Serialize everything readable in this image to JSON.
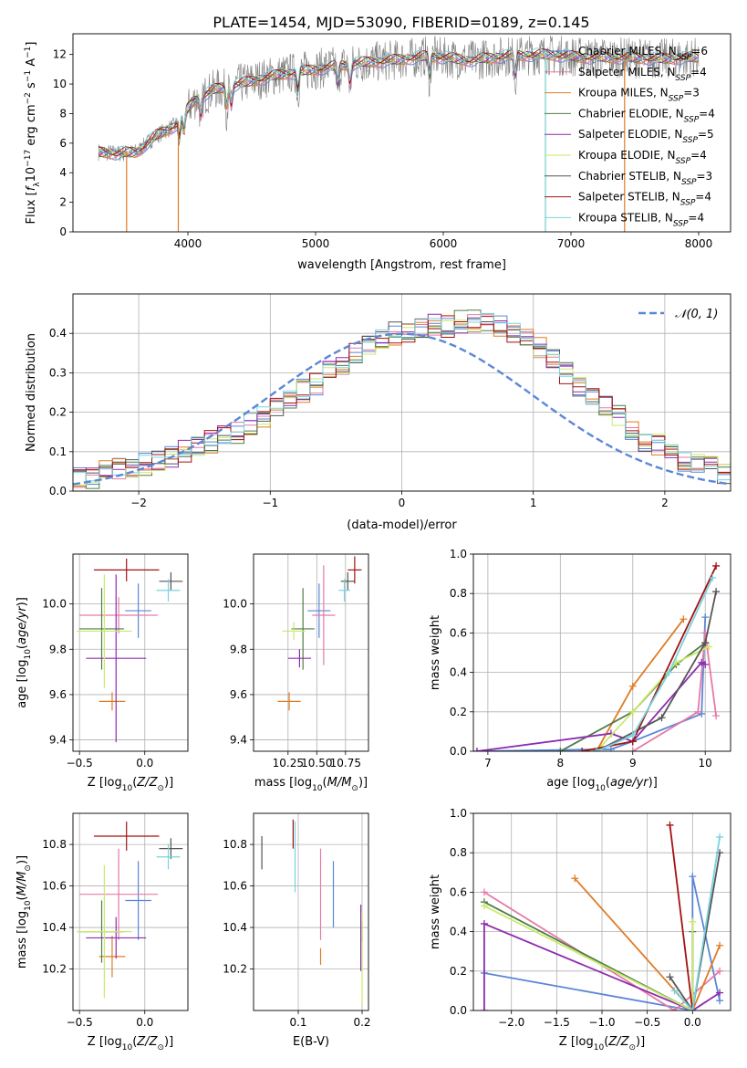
{
  "figure_title": "PLATE=1454, MJD=53090, FIBERID=0189, z=0.145",
  "colors": {
    "chabrier_miles": "#5a86d6",
    "salpeter_miles": "#e57aa8",
    "kroupa_miles": "#e07b24",
    "chabrier_elodie": "#4f7d46",
    "salpeter_elodie": "#8e2cb0",
    "kroupa_elodie": "#c9ea6a",
    "chabrier_stelib": "#555555",
    "salpeter_stelib": "#a31212",
    "kroupa_stelib": "#79d2df",
    "observed": "#7f7f7f",
    "gauss": "#5b87d8"
  },
  "models": [
    {
      "key": "chabrier_miles",
      "label": "Chabrier MILES, N",
      "sub": "SSP",
      "n": "=6"
    },
    {
      "key": "salpeter_miles",
      "label": "Salpeter MILES, N",
      "sub": "SSP",
      "n": "=4"
    },
    {
      "key": "kroupa_miles",
      "label": "Kroupa MILES, N",
      "sub": "SSP",
      "n": "=3"
    },
    {
      "key": "chabrier_elodie",
      "label": "Chabrier ELODIE, N",
      "sub": "SSP",
      "n": "=4"
    },
    {
      "key": "salpeter_elodie",
      "label": "Salpeter ELODIE, N",
      "sub": "SSP",
      "n": "=5"
    },
    {
      "key": "kroupa_elodie",
      "label": "Kroupa ELODIE, N",
      "sub": "SSP",
      "n": "=4"
    },
    {
      "key": "chabrier_stelib",
      "label": "Chabrier STELIB, N",
      "sub": "SSP",
      "n": "=3"
    },
    {
      "key": "salpeter_stelib",
      "label": "Salpeter STELIB, N",
      "sub": "SSP",
      "n": "=4"
    },
    {
      "key": "kroupa_stelib",
      "label": "Kroupa STELIB, N",
      "sub": "SSP",
      "n": "=4"
    }
  ],
  "chart_data": [
    {
      "id": "spectrum",
      "type": "line",
      "title": "PLATE=1454, MJD=53090, FIBERID=0189, z=0.145",
      "xlabel": "wavelength [Angstrom, rest frame]",
      "ylabel": "Flux [f_λ 10^-17 erg cm^-2 s^-1 A^-1]",
      "xlim": [
        3100,
        8250
      ],
      "ylim": [
        0,
        13.4
      ],
      "xticks": [
        4000,
        5000,
        6000,
        7000,
        8000
      ],
      "yticks": [
        0,
        2,
        4,
        6,
        8,
        10,
        12
      ],
      "continuum": {
        "x": [
          3300,
          3450,
          3600,
          3750,
          3900,
          3950,
          4050,
          4200,
          4400,
          4700,
          5000,
          5300,
          5600,
          5900,
          6200,
          6500,
          6800,
          7100,
          7400,
          7700,
          8000
        ],
        "y": [
          5.4,
          5.3,
          5.4,
          6.5,
          7.2,
          7.8,
          8.9,
          9.6,
          10.0,
          10.6,
          11.0,
          11.4,
          11.6,
          11.9,
          11.6,
          11.9,
          12.0,
          11.8,
          11.8,
          11.7,
          11.8
        ]
      },
      "absorption_lines": [
        3934,
        3969,
        4102,
        4304,
        4340,
        4861,
        5175,
        5270,
        5893,
        6563
      ],
      "model_dropouts": [
        {
          "series": "kroupa_miles",
          "x": 3520
        },
        {
          "series": "kroupa_miles",
          "x": 3925
        },
        {
          "series": "kroupa_elodie",
          "x": 6800
        },
        {
          "series": "kroupa_stelib",
          "x": 6800
        },
        {
          "series": "kroupa_miles",
          "x": 7420
        }
      ],
      "grid": false,
      "legend_position": "top-right"
    },
    {
      "id": "residuals",
      "type": "histogram",
      "xlabel": "(data-model)/error",
      "ylabel": "Normed distribution",
      "xlim": [
        -2.5,
        2.5
      ],
      "ylim": [
        0,
        0.5
      ],
      "xticks": [
        -2,
        -1,
        0,
        1,
        2
      ],
      "yticks": [
        0.0,
        0.1,
        0.2,
        0.3,
        0.4
      ],
      "bin_width": 0.1,
      "mean_profile": [
        0.03,
        0.035,
        0.05,
        0.06,
        0.06,
        0.07,
        0.08,
        0.09,
        0.1,
        0.11,
        0.125,
        0.14,
        0.15,
        0.17,
        0.19,
        0.21,
        0.235,
        0.255,
        0.27,
        0.3,
        0.32,
        0.345,
        0.365,
        0.38,
        0.4,
        0.395,
        0.41,
        0.42,
        0.42,
        0.43,
        0.43,
        0.43,
        0.42,
        0.405,
        0.38,
        0.36,
        0.34,
        0.3,
        0.27,
        0.24,
        0.22,
        0.19,
        0.16,
        0.13,
        0.12,
        0.1,
        0.08,
        0.07,
        0.06,
        0.04
      ],
      "gauss_label": "N(0,1)",
      "grid": true,
      "legend_position": "top-right"
    },
    {
      "id": "Z-age",
      "type": "errorbar",
      "xlabel": "Z [log10(Z/Z⊙)]",
      "ylabel": "age [log10(age/yr)]",
      "xlim": [
        -0.55,
        0.33
      ],
      "ylim": [
        9.35,
        10.22
      ],
      "xticks": [
        -0.5,
        0.0
      ],
      "yticks": [
        9.4,
        9.6,
        9.8,
        10.0
      ],
      "points": [
        {
          "s": "chabrier_miles",
          "x": -0.05,
          "y": 9.97,
          "xe": 0.1,
          "ye": 0.12
        },
        {
          "s": "salpeter_miles",
          "x": -0.2,
          "y": 9.95,
          "xe": 0.3,
          "ye": 0.08
        },
        {
          "s": "kroupa_miles",
          "x": -0.25,
          "y": 9.57,
          "xe": 0.1,
          "ye": 0.04
        },
        {
          "s": "chabrier_elodie",
          "x": -0.33,
          "y": 9.89,
          "xe": 0.17,
          "ye": 0.18
        },
        {
          "s": "salpeter_elodie",
          "x": -0.22,
          "y": 9.76,
          "xe": 0.23,
          "ye": 0.37
        },
        {
          "s": "kroupa_elodie",
          "x": -0.31,
          "y": 9.88,
          "xe": 0.21,
          "ye": 0.25
        },
        {
          "s": "chabrier_stelib",
          "x": 0.2,
          "y": 10.1,
          "xe": 0.09,
          "ye": 0.04
        },
        {
          "s": "salpeter_stelib",
          "x": -0.14,
          "y": 10.15,
          "xe": 0.25,
          "ye": 0.05
        },
        {
          "s": "kroupa_stelib",
          "x": 0.18,
          "y": 10.06,
          "xe": 0.09,
          "ye": 0.05
        }
      ],
      "grid": true
    },
    {
      "id": "mass-age",
      "type": "errorbar",
      "xlabel": "mass [log10(M/M⊙)]",
      "xlim": [
        9.95,
        10.95
      ],
      "ylim": [
        9.35,
        10.22
      ],
      "xticks": [
        10.25,
        10.5,
        10.75
      ],
      "yticks": [
        9.4,
        9.6,
        9.8,
        10.0
      ],
      "points": [
        {
          "s": "chabrier_miles",
          "x": 10.52,
          "y": 9.97,
          "xe": 0.1,
          "ye": 0.12
        },
        {
          "s": "salpeter_miles",
          "x": 10.56,
          "y": 9.95,
          "xe": 0.1,
          "ye": 0.22
        },
        {
          "s": "kroupa_miles",
          "x": 10.26,
          "y": 9.57,
          "xe": 0.1,
          "ye": 0.04
        },
        {
          "s": "chabrier_elodie",
          "x": 10.38,
          "y": 9.89,
          "xe": 0.1,
          "ye": 0.18
        },
        {
          "s": "salpeter_elodie",
          "x": 10.35,
          "y": 9.76,
          "xe": 0.1,
          "ye": 0.04
        },
        {
          "s": "kroupa_elodie",
          "x": 10.3,
          "y": 9.88,
          "xe": 0.1,
          "ye": 0.04
        },
        {
          "s": "chabrier_stelib",
          "x": 10.77,
          "y": 10.1,
          "xe": 0.06,
          "ye": 0.04
        },
        {
          "s": "salpeter_stelib",
          "x": 10.83,
          "y": 10.15,
          "xe": 0.06,
          "ye": 0.06
        },
        {
          "s": "kroupa_stelib",
          "x": 10.74,
          "y": 10.06,
          "xe": 0.05,
          "ye": 0.05
        }
      ],
      "grid": true
    },
    {
      "id": "age-weight",
      "type": "line",
      "xlabel": "age [log10(age/yr)]",
      "ylabel": "mass weight",
      "xlim": [
        6.8,
        10.35
      ],
      "ylim": [
        0,
        1.0
      ],
      "xticks": [
        7,
        8,
        9,
        10
      ],
      "yticks": [
        0.0,
        0.2,
        0.4,
        0.6,
        0.8,
        1.0
      ],
      "series": [
        {
          "s": "chabrier_miles",
          "x": [
            6.85,
            8.7,
            9.0,
            9.95,
            10.0
          ],
          "y": [
            0.0,
            0.01,
            0.05,
            0.19,
            0.68
          ]
        },
        {
          "s": "salpeter_miles",
          "x": [
            9.0,
            9.9,
            10.0,
            10.15
          ],
          "y": [
            0.0,
            0.2,
            0.6,
            0.18
          ]
        },
        {
          "s": "kroupa_miles",
          "x": [
            8.5,
            9.0,
            9.7
          ],
          "y": [
            0.0,
            0.33,
            0.67
          ]
        },
        {
          "s": "chabrier_elodie",
          "x": [
            8.0,
            9.0,
            9.6,
            10.0
          ],
          "y": [
            0.0,
            0.2,
            0.44,
            0.55
          ]
        },
        {
          "s": "salpeter_elodie",
          "x": [
            6.85,
            8.7,
            9.0,
            9.95,
            10.0
          ],
          "y": [
            0.0,
            0.09,
            0.05,
            0.45,
            0.44
          ]
        },
        {
          "s": "kroupa_elodie",
          "x": [
            8.5,
            9.0,
            9.6,
            10.05
          ],
          "y": [
            0.0,
            0.2,
            0.45,
            0.53
          ]
        },
        {
          "s": "chabrier_stelib",
          "x": [
            8.5,
            9.4,
            10.0,
            10.15
          ],
          "y": [
            0.0,
            0.17,
            0.55,
            0.81
          ]
        },
        {
          "s": "salpeter_stelib",
          "x": [
            8.3,
            9.0,
            10.15
          ],
          "y": [
            0.0,
            0.05,
            0.94
          ]
        },
        {
          "s": "kroupa_stelib",
          "x": [
            8.5,
            9.0,
            9.5,
            10.1
          ],
          "y": [
            0.0,
            0.08,
            0.4,
            0.88
          ]
        }
      ],
      "grid": true
    },
    {
      "id": "Z-mass",
      "type": "errorbar",
      "xlabel": "Z [log10(Z/Z⊙)]",
      "ylabel": "mass [log10(M/M⊙)]",
      "xlim": [
        -0.55,
        0.33
      ],
      "ylim": [
        10.0,
        10.95
      ],
      "xticks": [
        -0.5,
        0.0
      ],
      "yticks": [
        10.2,
        10.4,
        10.6,
        10.8
      ],
      "points": [
        {
          "s": "chabrier_miles",
          "x": -0.05,
          "y": 10.53,
          "xe": 0.1,
          "ye": 0.19
        },
        {
          "s": "salpeter_miles",
          "x": -0.2,
          "y": 10.56,
          "xe": 0.3,
          "ye": 0.22
        },
        {
          "s": "kroupa_miles",
          "x": -0.25,
          "y": 10.26,
          "xe": 0.1,
          "ye": 0.1
        },
        {
          "s": "chabrier_elodie",
          "x": -0.33,
          "y": 10.38,
          "xe": 0.17,
          "ye": 0.15
        },
        {
          "s": "salpeter_elodie",
          "x": -0.22,
          "y": 10.35,
          "xe": 0.23,
          "ye": 0.1
        },
        {
          "s": "kroupa_elodie",
          "x": -0.31,
          "y": 10.38,
          "xe": 0.21,
          "ye": 0.32
        },
        {
          "s": "chabrier_stelib",
          "x": 0.2,
          "y": 10.78,
          "xe": 0.09,
          "ye": 0.05
        },
        {
          "s": "salpeter_stelib",
          "x": -0.14,
          "y": 10.84,
          "xe": 0.25,
          "ye": 0.07
        },
        {
          "s": "kroupa_stelib",
          "x": 0.18,
          "y": 10.74,
          "xe": 0.09,
          "ye": 0.06
        }
      ],
      "grid": true
    },
    {
      "id": "EBV-mass",
      "type": "errorbar",
      "xlabel": "E(B-V)",
      "xlim": [
        0.03,
        0.21
      ],
      "ylim": [
        10.0,
        10.95
      ],
      "xticks": [
        0.1,
        0.2
      ],
      "yticks": [
        10.2,
        10.4,
        10.6,
        10.8
      ],
      "points": [
        {
          "s": "chabrier_miles",
          "x": 0.155,
          "y": 10.56,
          "xe": 0,
          "ye": 0.16
        },
        {
          "s": "salpeter_miles",
          "x": 0.135,
          "y": 10.56,
          "xe": 0,
          "ye": 0.22
        },
        {
          "s": "kroupa_miles",
          "x": 0.135,
          "y": 10.26,
          "xe": 0,
          "ye": 0.04
        },
        {
          "s": "chabrier_elodie",
          "x": 0.2,
          "y": 10.38,
          "xe": 0,
          "ye": 0.05
        },
        {
          "s": "salpeter_elodie",
          "x": 0.198,
          "y": 10.35,
          "xe": 0,
          "ye": 0.16
        },
        {
          "s": "kroupa_elodie",
          "x": 0.2,
          "y": 10.25,
          "xe": 0,
          "ye": 0.22
        },
        {
          "s": "chabrier_stelib",
          "x": 0.043,
          "y": 10.76,
          "xe": 0,
          "ye": 0.08
        },
        {
          "s": "salpeter_stelib",
          "x": 0.092,
          "y": 10.85,
          "xe": 0,
          "ye": 0.07
        },
        {
          "s": "kroupa_stelib",
          "x": 0.095,
          "y": 10.74,
          "xe": 0,
          "ye": 0.17
        }
      ],
      "grid": true
    },
    {
      "id": "Z-weight",
      "type": "line",
      "xlabel": "Z [log10(Z/Z⊙)]",
      "ylabel": "mass weight",
      "xlim": [
        -2.42,
        0.42
      ],
      "ylim": [
        0,
        1.0
      ],
      "xticks": [
        -2.0,
        -1.5,
        -1.0,
        -0.5,
        0.0
      ],
      "yticks": [
        0.0,
        0.2,
        0.4,
        0.6,
        0.8,
        1.0
      ],
      "series": [
        {
          "s": "chabrier_miles",
          "x": [
            -2.3,
            0.0,
            0.0,
            0.3
          ],
          "y": [
            0.19,
            0.0,
            0.68,
            0.05
          ]
        },
        {
          "s": "salpeter_miles",
          "x": [
            -2.3,
            -0.2,
            0.3
          ],
          "y": [
            0.6,
            0.0,
            0.2
          ]
        },
        {
          "s": "kroupa_miles",
          "x": [
            -1.3,
            0.0,
            0.3
          ],
          "y": [
            0.67,
            0.0,
            0.33
          ]
        },
        {
          "s": "chabrier_elodie",
          "x": [
            -2.3,
            0.0,
            0.0
          ],
          "y": [
            0.55,
            0.0,
            0.4
          ]
        },
        {
          "s": "salpeter_elodie",
          "x": [
            -2.3,
            -2.3,
            0.0,
            0.3
          ],
          "y": [
            0.0,
            0.44,
            0.0,
            0.09
          ]
        },
        {
          "s": "kroupa_elodie",
          "x": [
            -2.3,
            0.0,
            0.0
          ],
          "y": [
            0.53,
            0.0,
            0.45
          ]
        },
        {
          "s": "chabrier_stelib",
          "x": [
            -0.25,
            0.0,
            0.3
          ],
          "y": [
            0.17,
            0.0,
            0.8
          ]
        },
        {
          "s": "salpeter_stelib",
          "x": [
            -0.25,
            0.0
          ],
          "y": [
            0.94,
            0.0
          ]
        },
        {
          "s": "kroupa_stelib",
          "x": [
            -0.2,
            0.0,
            0.3
          ],
          "y": [
            0.1,
            0.0,
            0.88
          ]
        }
      ],
      "grid": true
    }
  ]
}
